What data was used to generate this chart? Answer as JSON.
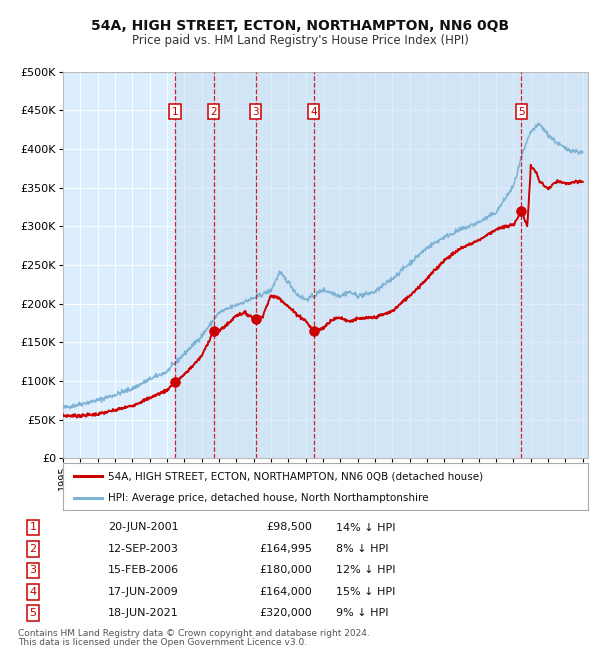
{
  "title": "54A, HIGH STREET, ECTON, NORTHAMPTON, NN6 0QB",
  "subtitle": "Price paid vs. HM Land Registry's House Price Index (HPI)",
  "sale_label": "54A, HIGH STREET, ECTON, NORTHAMPTON, NN6 0QB (detached house)",
  "hpi_label": "HPI: Average price, detached house, North Northamptonshire",
  "footer1": "Contains HM Land Registry data © Crown copyright and database right 2024.",
  "footer2": "This data is licensed under the Open Government Licence v3.0.",
  "sales": [
    {
      "num": 1,
      "date": "20-JUN-2001",
      "price": 98500,
      "price_str": "£98,500",
      "pct": "14% ↓ HPI",
      "year": 2001.47
    },
    {
      "num": 2,
      "date": "12-SEP-2003",
      "price": 164995,
      "price_str": "£164,995",
      "pct": "8% ↓ HPI",
      "year": 2003.7
    },
    {
      "num": 3,
      "date": "15-FEB-2006",
      "price": 180000,
      "price_str": "£180,000",
      "pct": "12% ↓ HPI",
      "year": 2006.12
    },
    {
      "num": 4,
      "date": "17-JUN-2009",
      "price": 164000,
      "price_str": "£164,000",
      "pct": "15% ↓ HPI",
      "year": 2009.46
    },
    {
      "num": 5,
      "date": "18-JUN-2021",
      "price": 320000,
      "price_str": "£320,000",
      "pct": "9% ↓ HPI",
      "year": 2021.46
    }
  ],
  "red_color": "#cc0000",
  "blue_color": "#7fb3d3",
  "bg_color": "#ddeeff",
  "shade_color": "#c8dff0",
  "grid_color": "#ffffff",
  "ylim": [
    0,
    500000
  ],
  "xlim_start": 1995.0,
  "xlim_end": 2025.3,
  "hpi_anchors": [
    [
      1995.0,
      65000
    ],
    [
      1996.0,
      70000
    ],
    [
      1997.0,
      75000
    ],
    [
      1998.0,
      82000
    ],
    [
      1999.0,
      90000
    ],
    [
      2000.0,
      102000
    ],
    [
      2001.0,
      112000
    ],
    [
      2002.0,
      135000
    ],
    [
      2003.0,
      158000
    ],
    [
      2004.0,
      188000
    ],
    [
      2005.0,
      198000
    ],
    [
      2006.0,
      207000
    ],
    [
      2007.0,
      217000
    ],
    [
      2007.5,
      240000
    ],
    [
      2008.0,
      228000
    ],
    [
      2008.5,
      212000
    ],
    [
      2009.0,
      205000
    ],
    [
      2009.5,
      210000
    ],
    [
      2010.0,
      218000
    ],
    [
      2010.5,
      214000
    ],
    [
      2011.0,
      210000
    ],
    [
      2011.5,
      215000
    ],
    [
      2012.0,
      210000
    ],
    [
      2012.5,
      212000
    ],
    [
      2013.0,
      215000
    ],
    [
      2014.0,
      232000
    ],
    [
      2015.0,
      252000
    ],
    [
      2016.0,
      272000
    ],
    [
      2017.0,
      286000
    ],
    [
      2018.0,
      296000
    ],
    [
      2019.0,
      305000
    ],
    [
      2020.0,
      318000
    ],
    [
      2021.0,
      352000
    ],
    [
      2021.5,
      392000
    ],
    [
      2022.0,
      422000
    ],
    [
      2022.5,
      432000
    ],
    [
      2023.0,
      418000
    ],
    [
      2023.5,
      408000
    ],
    [
      2024.0,
      400000
    ],
    [
      2025.0,
      395000
    ]
  ],
  "price_anchors": [
    [
      1995.0,
      55000
    ],
    [
      1996.0,
      55000
    ],
    [
      1997.0,
      57000
    ],
    [
      1998.0,
      62000
    ],
    [
      1999.0,
      68000
    ],
    [
      2000.0,
      78000
    ],
    [
      2001.0,
      88000
    ],
    [
      2001.47,
      98500
    ],
    [
      2002.0,
      108000
    ],
    [
      2003.0,
      132000
    ],
    [
      2003.7,
      164995
    ],
    [
      2004.0,
      165000
    ],
    [
      2004.5,
      173000
    ],
    [
      2005.0,
      185000
    ],
    [
      2005.5,
      188000
    ],
    [
      2006.12,
      180000
    ],
    [
      2006.5,
      183000
    ],
    [
      2007.0,
      210000
    ],
    [
      2007.5,
      207000
    ],
    [
      2008.0,
      196000
    ],
    [
      2008.5,
      186000
    ],
    [
      2009.0,
      178000
    ],
    [
      2009.46,
      164000
    ],
    [
      2010.0,
      168000
    ],
    [
      2010.5,
      179000
    ],
    [
      2011.0,
      182000
    ],
    [
      2011.5,
      177000
    ],
    [
      2012.0,
      180000
    ],
    [
      2012.5,
      181000
    ],
    [
      2013.0,
      182000
    ],
    [
      2014.0,
      190000
    ],
    [
      2015.0,
      210000
    ],
    [
      2016.0,
      232000
    ],
    [
      2017.0,
      256000
    ],
    [
      2018.0,
      272000
    ],
    [
      2019.0,
      282000
    ],
    [
      2020.0,
      296000
    ],
    [
      2021.0,
      302000
    ],
    [
      2021.46,
      320000
    ],
    [
      2021.8,
      300000
    ],
    [
      2022.0,
      378000
    ],
    [
      2022.3,
      370000
    ],
    [
      2022.5,
      358000
    ],
    [
      2023.0,
      348000
    ],
    [
      2023.5,
      358000
    ],
    [
      2024.0,
      355000
    ],
    [
      2025.0,
      358000
    ]
  ]
}
